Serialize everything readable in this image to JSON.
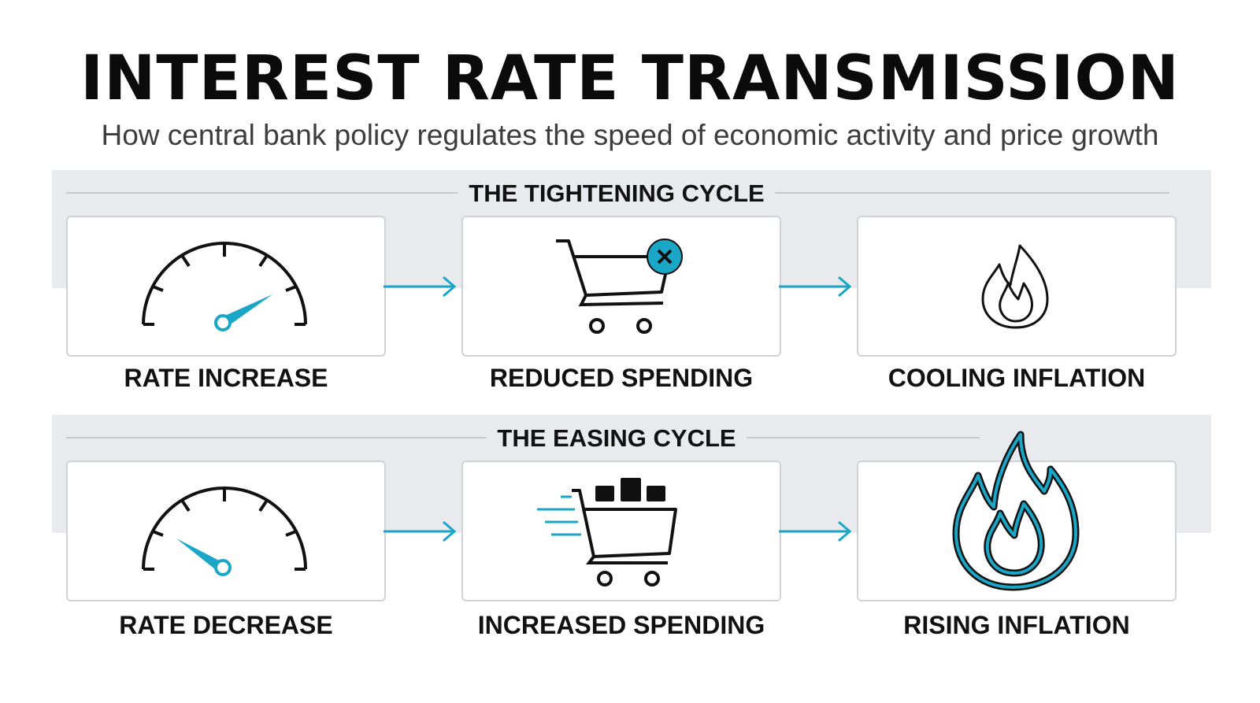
{
  "header": {
    "title": "INTEREST RATE TRANSMISSION",
    "subtitle": "How central bank policy regulates the speed of economic activity and price growth"
  },
  "colors": {
    "accent": "#1aa6c6",
    "ink": "#111111",
    "band": "#e9eaed",
    "card_border": "#cfd2d6"
  },
  "cycles": [
    {
      "title": "THE TIGHTENING CYCLE",
      "steps": [
        {
          "label": "RATE INCREASE",
          "icon": "speedometer-high-icon"
        },
        {
          "label": "REDUCED SPENDING",
          "icon": "shopping-cart-blocked-icon"
        },
        {
          "label": "COOLING INFLATION",
          "icon": "small-flame-icon"
        }
      ]
    },
    {
      "title": "THE EASING CYCLE",
      "steps": [
        {
          "label": "RATE DECREASE",
          "icon": "speedometer-low-icon"
        },
        {
          "label": "INCREASED SPENDING",
          "icon": "full-shopping-cart-icon"
        },
        {
          "label": "RISING INFLATION",
          "icon": "large-flame-icon"
        }
      ]
    }
  ]
}
